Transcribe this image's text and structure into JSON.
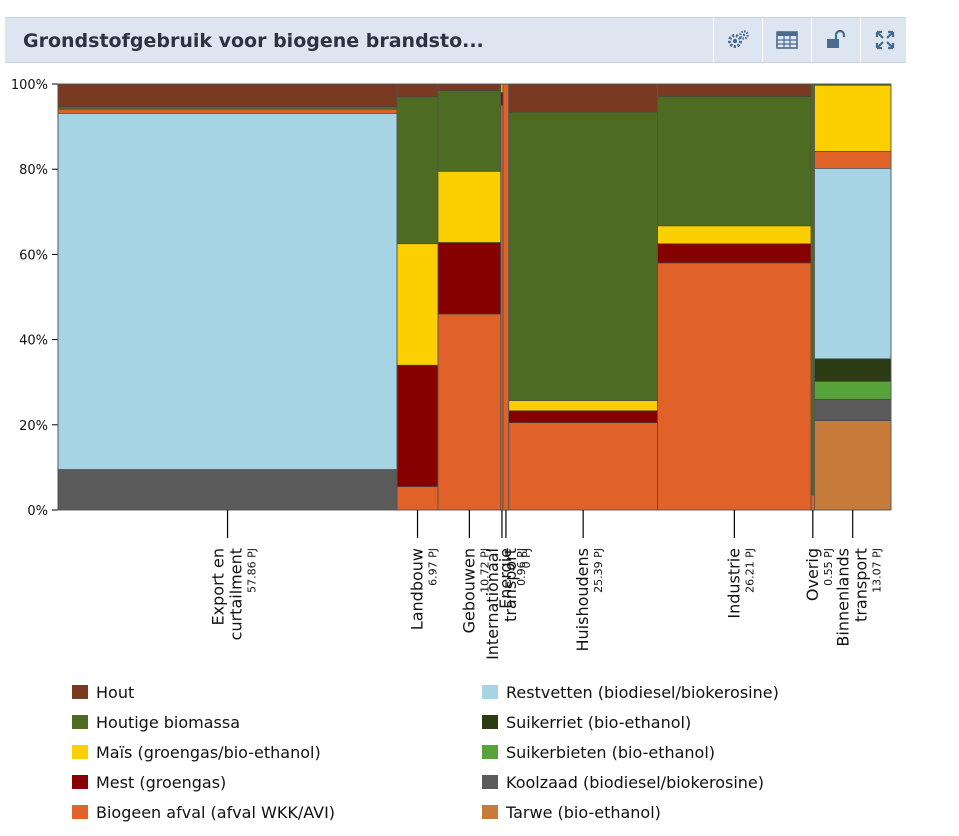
{
  "header": {
    "title": "Grondstofgebruik voor biogene brandsto...",
    "tools": [
      {
        "icon": "gears-icon"
      },
      {
        "icon": "table-icon"
      },
      {
        "icon": "unlock-icon"
      },
      {
        "icon": "fullscreen-icon"
      }
    ]
  },
  "colors": {
    "Hout": "#7a3a22",
    "Houtige biomassa": "#4e6b22",
    "Maïs (groengas/bio-ethanol)": "#fcd000",
    "Mest (groengas)": "#860000",
    "Biogeen afval (afval WKK/AVI)": "#e06228",
    "Restvetten (biodiesel/biokerosine)": "#a7d4e4",
    "Suikerriet (bio-ethanol)": "#2b3c15",
    "Suikerbieten (bio-ethanol)": "#57a23b",
    "Koolzaad (biodiesel/biokerosine)": "#5a5a5a",
    "Tarwe (bio-ethanol)": "#c77b3a"
  },
  "chart_data": {
    "type": "mekko",
    "title": "Grondstofgebruik voor biogene brandsto...",
    "y_ticks": [
      "0%",
      "20%",
      "40%",
      "60%",
      "80%",
      "100%"
    ],
    "ylim": [
      0,
      100
    ],
    "series_order": [
      "Tarwe (bio-ethanol)",
      "Koolzaad (biodiesel/biokerosine)",
      "Suikerbieten (bio-ethanol)",
      "Suikerriet (bio-ethanol)",
      "Restvetten (biodiesel/biokerosine)",
      "Biogeen afval (afval WKK/AVI)",
      "Mest (groengas)",
      "Maïs (groengas/bio-ethanol)",
      "Houtige biomassa",
      "Hout"
    ],
    "categories": [
      {
        "label": "Export en curtailment",
        "lines": [
          "Export en",
          "curtailment"
        ],
        "value_label": "57.86 PJ",
        "total": 57.86,
        "shares": {
          "Koolzaad (biodiesel/biokerosine)": 9.5,
          "Restvetten (biodiesel/biokerosine)": 83.6,
          "Biogeen afval (afval WKK/AVI)": 1.0,
          "Houtige biomassa": 0.6,
          "Hout": 5.3
        }
      },
      {
        "label": "Landbouw",
        "lines": [
          "Landbouw"
        ],
        "value_label": "6.97 PJ",
        "total": 6.97,
        "shares": {
          "Biogeen afval (afval WKK/AVI)": 5.5,
          "Mest (groengas)": 28.5,
          "Maïs (groengas/bio-ethanol)": 28.5,
          "Houtige biomassa": 34.5,
          "Hout": 3.0
        }
      },
      {
        "label": "Gebouwen",
        "lines": [
          "Gebouwen"
        ],
        "value_label": "10.72 PJ",
        "total": 10.72,
        "shares": {
          "Biogeen afval (afval WKK/AVI)": 46.0,
          "Mest (groengas)": 16.8,
          "Maïs (groengas/bio-ethanol)": 16.7,
          "Houtige biomassa": 19.0,
          "Hout": 1.5
        }
      },
      {
        "label": "Internationaal transport",
        "lines": [
          "Internationaal",
          "transport"
        ],
        "value_label": "0 PJ",
        "total": 0.4,
        "shares": {
          "Biogeen afval (afval WKK/AVI)": 95.0,
          "Mest (groengas)": 3.0,
          "Maïs (groengas/bio-ethanol)": 2.0
        }
      },
      {
        "label": "Energie",
        "lines": [
          "Energie"
        ],
        "value_label": "0.96 PJ",
        "total": 0.96,
        "shares": {
          "Biogeen afval (afval WKK/AVI)": 100.0
        }
      },
      {
        "label": "Huishoudens",
        "lines": [
          "Huishoudens"
        ],
        "value_label": "25.39 PJ",
        "total": 25.39,
        "shares": {
          "Biogeen afval (afval WKK/AVI)": 20.5,
          "Mest (groengas)": 2.8,
          "Maïs (groengas/bio-ethanol)": 2.4,
          "Houtige biomassa": 67.7,
          "Hout": 6.6
        }
      },
      {
        "label": "Industrie",
        "lines": [
          "Industrie"
        ],
        "value_label": "26.21 PJ",
        "total": 26.21,
        "shares": {
          "Biogeen afval (afval WKK/AVI)": 58.0,
          "Mest (groengas)": 4.5,
          "Maïs (groengas/bio-ethanol)": 4.2,
          "Houtige biomassa": 30.4,
          "Hout": 2.9
        }
      },
      {
        "label": "Overig",
        "lines": [
          "Overig"
        ],
        "value_label": "0.55 PJ",
        "total": 0.55,
        "shares": {
          "Biogeen afval (afval WKK/AVI)": 3.5,
          "Houtige biomassa": 96.5
        }
      },
      {
        "label": "Binnenlands transport",
        "lines": [
          "Binnenlands",
          "transport"
        ],
        "value_label": "13.07 PJ",
        "total": 13.07,
        "shares": {
          "Tarwe (bio-ethanol)": 21.0,
          "Koolzaad (biodiesel/biokerosine)": 5.0,
          "Suikerbieten (bio-ethanol)": 4.2,
          "Suikerriet (bio-ethanol)": 5.3,
          "Restvetten (biodiesel/biokerosine)": 44.7,
          "Biogeen afval (afval WKK/AVI)": 4.0,
          "Maïs (groengas/bio-ethanol)": 15.5,
          "Houtige biomassa": 0.3
        }
      }
    ]
  },
  "legend": [
    {
      "label": "Hout"
    },
    {
      "label": "Houtige biomassa"
    },
    {
      "label": "Maïs (groengas/bio-ethanol)"
    },
    {
      "label": "Mest (groengas)"
    },
    {
      "label": "Biogeen afval (afval WKK/AVI)"
    },
    {
      "label": "Restvetten (biodiesel/biokerosine)"
    },
    {
      "label": "Suikerriet (bio-ethanol)"
    },
    {
      "label": "Suikerbieten (bio-ethanol)"
    },
    {
      "label": "Koolzaad (biodiesel/biokerosine)"
    },
    {
      "label": "Tarwe (bio-ethanol)"
    }
  ]
}
